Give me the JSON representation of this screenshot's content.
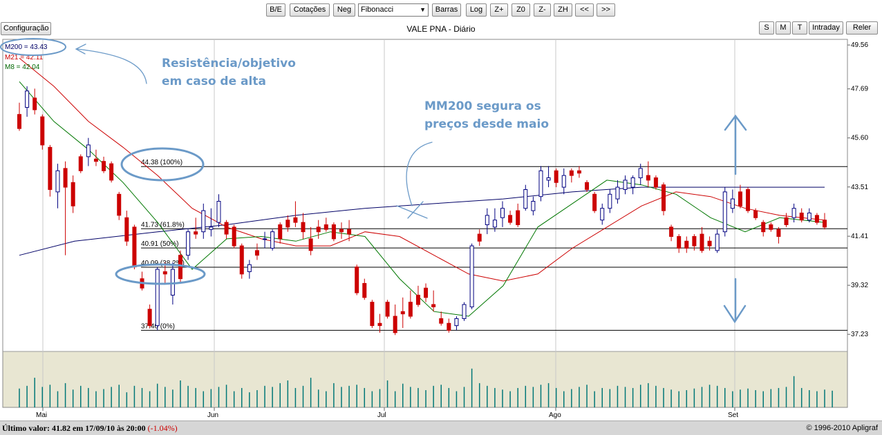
{
  "toolbar": {
    "buttons": [
      "B/E",
      "Cotações",
      "Neg"
    ],
    "study_select": "Fibonacci",
    "buttons2": [
      "Barras",
      "Log",
      "Z+",
      "Z0",
      "Z-",
      "ZH",
      "<<",
      ">>"
    ]
  },
  "config_button": "Configuração",
  "chart_title": "VALE PNA - Diário",
  "period_buttons": [
    "S",
    "M",
    "T",
    "Intraday"
  ],
  "reload_button": "Reler",
  "legend": [
    {
      "label": "M200 = 43.43",
      "color": "#000066"
    },
    {
      "label": "M21 = 42.11",
      "color": "#cc0000"
    },
    {
      "label": "M8 = 42.04",
      "color": "#006600"
    }
  ],
  "annotations": {
    "resistance": [
      "Resistência/objetivo",
      "em caso de alta"
    ],
    "mm200": [
      "MM200 segura os",
      "preços desde maio"
    ]
  },
  "status": {
    "last_value": "Último valor: 41.82 em 17/09/10 às 20:00",
    "change": "(-1.04%)",
    "copyright": "© 1996-2010 Apligraf"
  },
  "chart_data": {
    "type": "candlestick",
    "y_ticks": [
      49.56,
      47.69,
      45.6,
      43.51,
      41.41,
      39.32,
      37.23
    ],
    "x_ticks": [
      "Mai",
      "Jun",
      "Jul",
      "Ago",
      "Set"
    ],
    "ylim": [
      36.5,
      49.8
    ],
    "fibonacci": [
      {
        "label": "44.38 (100%)",
        "value": 44.38
      },
      {
        "label": "41.73 (61.8%)",
        "value": 41.73
      },
      {
        "label": "40.91 (50%)",
        "value": 40.91
      },
      {
        "label": "40.09 (38.2%)",
        "value": 40.09
      },
      {
        "label": "37.40 (0%)",
        "value": 37.4
      }
    ],
    "colors": {
      "up": "#000080",
      "down": "#cc0000",
      "m200": "#000066",
      "m21": "#cc0000",
      "m8": "#007700",
      "volume": "#007777"
    },
    "candles": [
      [
        46.6,
        47.1,
        45.9,
        46.0
      ],
      [
        46.9,
        47.8,
        46.5,
        47.6
      ],
      [
        47.3,
        47.7,
        46.6,
        46.8
      ],
      [
        46.5,
        46.6,
        45.1,
        45.3
      ],
      [
        45.2,
        45.3,
        43.1,
        43.4
      ],
      [
        43.3,
        44.5,
        42.6,
        44.2
      ],
      [
        44.3,
        44.6,
        40.6,
        43.5
      ],
      [
        43.7,
        44.0,
        42.4,
        42.7
      ],
      [
        44.8,
        44.9,
        44.1,
        44.2
      ],
      [
        44.8,
        45.6,
        44.4,
        45.3
      ],
      [
        44.7,
        45.1,
        44.4,
        44.6
      ],
      [
        44.6,
        44.8,
        44.1,
        44.2
      ],
      [
        44.5,
        44.6,
        43.7,
        43.8
      ],
      [
        43.2,
        43.3,
        42.1,
        42.3
      ],
      [
        42.2,
        42.5,
        41.0,
        41.2
      ],
      [
        41.8,
        41.9,
        40.0,
        40.1
      ],
      [
        39.6,
        39.9,
        39.1,
        39.2
      ],
      [
        38.3,
        38.5,
        37.5,
        37.6
      ],
      [
        37.6,
        40.1,
        37.4,
        40.0
      ],
      [
        39.9,
        40.3,
        39.4,
        39.8
      ],
      [
        38.9,
        40.3,
        38.5,
        40.0
      ],
      [
        40.6,
        40.8,
        39.4,
        39.6
      ],
      [
        40.6,
        41.7,
        40.4,
        41.6
      ],
      [
        41.6,
        42.2,
        41.3,
        41.5
      ],
      [
        41.6,
        42.8,
        41.3,
        42.5
      ],
      [
        41.7,
        42.6,
        41.4,
        41.8
      ],
      [
        42.0,
        43.2,
        41.8,
        42.9
      ],
      [
        42.0,
        42.1,
        41.3,
        41.5
      ],
      [
        41.8,
        41.9,
        40.9,
        41.0
      ],
      [
        41.0,
        41.1,
        39.6,
        39.8
      ],
      [
        39.9,
        40.4,
        39.6,
        40.2
      ],
      [
        40.8,
        41.1,
        40.4,
        40.6
      ],
      [
        41.3,
        41.6,
        40.9,
        41.3
      ],
      [
        40.9,
        41.7,
        40.8,
        41.6
      ],
      [
        41.9,
        42.0,
        41.1,
        41.3
      ],
      [
        42.1,
        42.3,
        41.6,
        41.8
      ],
      [
        42.2,
        42.9,
        41.8,
        42.0
      ],
      [
        42.0,
        42.4,
        41.3,
        41.6
      ],
      [
        41.3,
        41.8,
        40.6,
        40.8
      ],
      [
        41.8,
        42.1,
        41.3,
        41.6
      ],
      [
        41.9,
        42.2,
        41.6,
        41.7
      ],
      [
        41.9,
        42.0,
        41.2,
        41.3
      ],
      [
        41.7,
        42.0,
        41.3,
        41.6
      ],
      [
        41.7,
        42.1,
        41.2,
        41.5
      ],
      [
        40.1,
        40.2,
        38.9,
        39.0
      ],
      [
        39.4,
        39.6,
        38.7,
        38.8
      ],
      [
        38.6,
        38.7,
        37.5,
        37.6
      ],
      [
        37.7,
        38.1,
        37.3,
        37.6
      ],
      [
        38.6,
        38.7,
        37.9,
        38.0
      ],
      [
        38.0,
        38.5,
        37.2,
        37.3
      ],
      [
        38.2,
        38.8,
        37.5,
        38.1
      ],
      [
        38.6,
        39.1,
        37.9,
        38.0
      ],
      [
        38.9,
        39.3,
        38.4,
        38.5
      ],
      [
        39.2,
        39.4,
        38.6,
        38.8
      ],
      [
        38.5,
        39.1,
        38.2,
        38.4
      ],
      [
        37.9,
        38.2,
        37.6,
        37.7
      ],
      [
        37.7,
        37.9,
        37.3,
        37.4
      ],
      [
        37.6,
        38.0,
        37.4,
        37.9
      ],
      [
        37.9,
        38.6,
        37.8,
        38.5
      ],
      [
        38.4,
        41.1,
        38.3,
        41.0
      ],
      [
        41.5,
        41.7,
        41.0,
        41.2
      ],
      [
        41.9,
        42.6,
        41.5,
        42.3
      ],
      [
        41.8,
        42.6,
        41.6,
        42.1
      ],
      [
        42.2,
        42.9,
        41.8,
        42.6
      ],
      [
        42.3,
        42.5,
        41.9,
        42.0
      ],
      [
        42.5,
        42.8,
        41.8,
        41.9
      ],
      [
        42.6,
        43.6,
        42.5,
        43.4
      ],
      [
        42.5,
        43.1,
        42.3,
        42.9
      ],
      [
        43.1,
        44.4,
        42.9,
        44.2
      ],
      [
        43.8,
        44.4,
        43.5,
        43.9
      ],
      [
        44.2,
        44.3,
        43.5,
        43.7
      ],
      [
        43.5,
        44.3,
        43.2,
        44.0
      ],
      [
        44.2,
        44.3,
        43.7,
        44.0
      ],
      [
        44.2,
        44.4,
        43.9,
        44.1
      ],
      [
        43.7,
        43.8,
        43.3,
        43.4
      ],
      [
        43.2,
        43.3,
        42.4,
        42.5
      ],
      [
        42.1,
        42.8,
        41.9,
        42.6
      ],
      [
        42.6,
        43.4,
        42.4,
        43.2
      ],
      [
        43.0,
        43.8,
        42.8,
        43.5
      ],
      [
        43.4,
        44.0,
        43.2,
        43.8
      ],
      [
        43.5,
        44.0,
        43.2,
        43.9
      ],
      [
        43.9,
        44.5,
        43.6,
        44.3
      ],
      [
        44.0,
        44.6,
        43.5,
        43.8
      ],
      [
        43.9,
        44.0,
        43.4,
        43.5
      ],
      [
        43.6,
        43.7,
        42.3,
        42.5
      ],
      [
        41.8,
        41.9,
        41.2,
        41.4
      ],
      [
        41.4,
        41.5,
        40.7,
        40.9
      ],
      [
        41.2,
        41.4,
        40.7,
        40.9
      ],
      [
        41.4,
        41.5,
        40.8,
        41.0
      ],
      [
        41.5,
        41.8,
        40.7,
        40.8
      ],
      [
        41.2,
        41.4,
        40.8,
        41.0
      ],
      [
        40.8,
        41.7,
        40.7,
        41.5
      ],
      [
        41.6,
        43.5,
        41.4,
        43.3
      ],
      [
        42.6,
        43.4,
        42.4,
        43.0
      ],
      [
        43.3,
        43.6,
        42.6,
        42.7
      ],
      [
        43.4,
        43.5,
        42.4,
        42.5
      ],
      [
        42.5,
        42.6,
        42.1,
        42.2
      ],
      [
        42.0,
        42.1,
        41.4,
        41.6
      ],
      [
        41.9,
        42.0,
        41.6,
        41.7
      ],
      [
        41.7,
        41.8,
        41.1,
        41.4
      ],
      [
        42.2,
        42.4,
        41.8,
        41.9
      ],
      [
        42.2,
        42.8,
        42.0,
        42.6
      ],
      [
        42.4,
        42.6,
        42.0,
        42.1
      ],
      [
        42.1,
        42.6,
        42.0,
        42.4
      ],
      [
        42.3,
        42.4,
        41.9,
        42.0
      ],
      [
        42.1,
        42.4,
        41.7,
        41.8
      ]
    ],
    "m200": [
      [
        0,
        40.6
      ],
      [
        80,
        41.2
      ],
      [
        200,
        41.6
      ],
      [
        300,
        41.9
      ],
      [
        400,
        42.3
      ],
      [
        500,
        42.6
      ],
      [
        600,
        42.8
      ],
      [
        700,
        43.0
      ],
      [
        800,
        43.3
      ],
      [
        900,
        43.5
      ],
      [
        1000,
        43.5
      ],
      [
        1165,
        43.5
      ]
    ],
    "m21": [
      [
        0,
        49.0
      ],
      [
        50,
        47.8
      ],
      [
        100,
        46.3
      ],
      [
        150,
        45.2
      ],
      [
        200,
        44.0
      ],
      [
        250,
        42.6
      ],
      [
        300,
        41.8
      ],
      [
        350,
        41.3
      ],
      [
        400,
        41.0
      ],
      [
        450,
        41.0
      ],
      [
        500,
        41.6
      ],
      [
        550,
        41.4
      ],
      [
        600,
        40.6
      ],
      [
        650,
        39.8
      ],
      [
        700,
        39.5
      ],
      [
        750,
        39.8
      ],
      [
        800,
        40.9
      ],
      [
        850,
        41.8
      ],
      [
        900,
        42.7
      ],
      [
        950,
        43.3
      ],
      [
        1000,
        43.1
      ],
      [
        1050,
        42.6
      ],
      [
        1100,
        42.3
      ],
      [
        1165,
        42.1
      ]
    ],
    "m8": [
      [
        0,
        48.0
      ],
      [
        50,
        46.3
      ],
      [
        100,
        45.1
      ],
      [
        150,
        43.7
      ],
      [
        200,
        42.0
      ],
      [
        250,
        40.0
      ],
      [
        300,
        41.3
      ],
      [
        350,
        41.4
      ],
      [
        400,
        41.2
      ],
      [
        450,
        41.6
      ],
      [
        500,
        41.4
      ],
      [
        550,
        39.6
      ],
      [
        600,
        38.2
      ],
      [
        650,
        38.0
      ],
      [
        700,
        39.3
      ],
      [
        750,
        41.8
      ],
      [
        800,
        42.8
      ],
      [
        850,
        43.8
      ],
      [
        900,
        43.6
      ],
      [
        950,
        43.2
      ],
      [
        1000,
        42.2
      ],
      [
        1050,
        41.6
      ],
      [
        1100,
        42.2
      ],
      [
        1165,
        42.0
      ]
    ],
    "volumes": [
      0.35,
      0.4,
      0.55,
      0.38,
      0.42,
      0.3,
      0.45,
      0.33,
      0.4,
      0.36,
      0.3,
      0.34,
      0.38,
      0.42,
      0.28,
      0.4,
      0.36,
      0.3,
      0.44,
      0.38,
      0.33,
      0.5,
      0.4,
      0.36,
      0.3,
      0.34,
      0.38,
      0.42,
      0.3,
      0.36,
      0.28,
      0.32,
      0.4,
      0.38,
      0.45,
      0.5,
      0.36,
      0.4,
      0.55,
      0.33,
      0.3,
      0.45,
      0.38,
      0.4,
      0.42,
      0.36,
      0.3,
      0.34,
      0.5,
      0.3,
      0.44,
      0.38,
      0.36,
      0.32,
      0.4,
      0.42,
      0.36,
      0.3,
      0.38,
      0.72,
      0.45,
      0.4,
      0.36,
      0.33,
      0.3,
      0.36,
      0.4,
      0.38,
      0.42,
      0.45,
      0.36,
      0.3,
      0.34,
      0.38,
      0.42,
      0.3,
      0.36,
      0.34,
      0.4,
      0.38,
      0.36,
      0.42,
      0.45,
      0.4,
      0.36,
      0.33,
      0.3,
      0.32,
      0.35,
      0.38,
      0.42,
      0.4,
      0.36,
      0.3,
      0.33,
      0.35,
      0.32,
      0.3,
      0.34,
      0.36,
      0.38,
      0.58,
      0.36,
      0.32,
      0.3,
      0.33,
      0.31
    ]
  }
}
